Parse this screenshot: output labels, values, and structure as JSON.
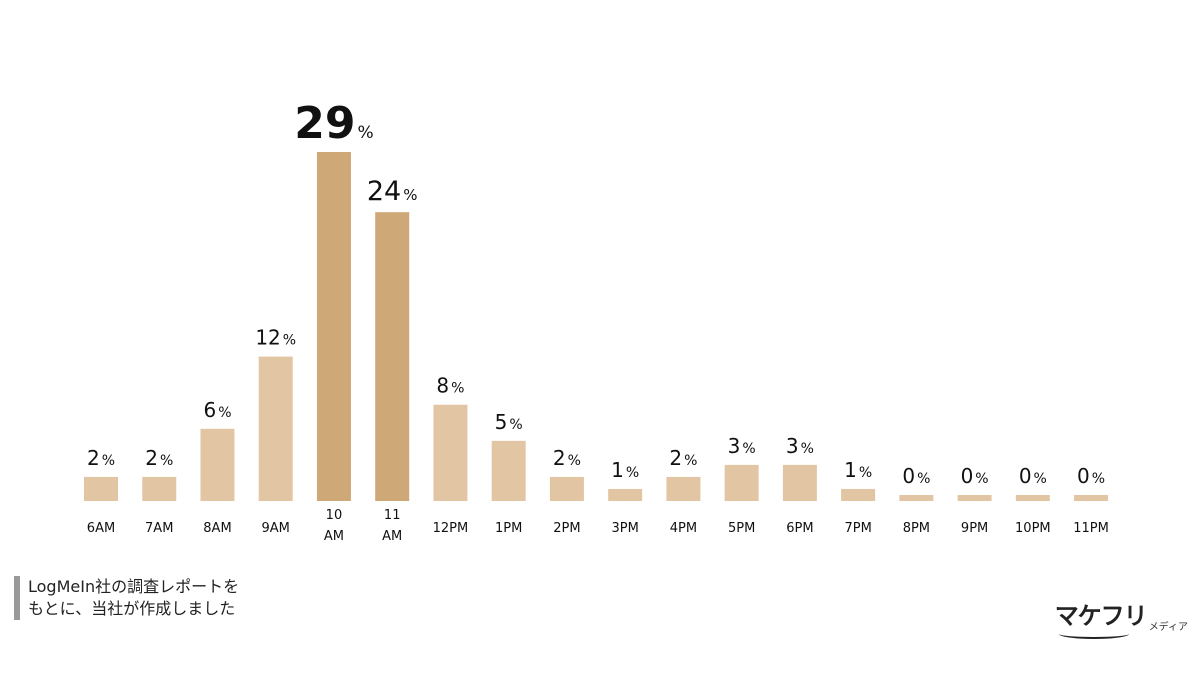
{
  "chart_data": {
    "type": "bar",
    "title": "",
    "xlabel": "",
    "ylabel": "",
    "ylim": [
      0,
      29
    ],
    "grid": false,
    "categories": [
      "6AM",
      "7AM",
      "8AM",
      "9AM",
      "10\nAM",
      "11\nAM",
      "12PM",
      "1PM",
      "2PM",
      "3PM",
      "4PM",
      "5PM",
      "6PM",
      "7PM",
      "8PM",
      "9PM",
      "10PM",
      "11PM"
    ],
    "values": [
      2,
      2,
      6,
      12,
      29,
      24,
      8,
      5,
      2,
      1,
      2,
      3,
      3,
      1,
      0,
      0,
      0,
      0
    ],
    "value_suffix": "%",
    "highlight_indices": [
      4,
      5
    ],
    "colors": {
      "bar": "#e2c6a4",
      "highlight": "#cfa878",
      "label": "#111111"
    }
  },
  "source_note": {
    "line1": "LogMeIn社の調査レポートを",
    "line2": "もとに、当社が作成しました"
  },
  "logo": {
    "main": "マケフリ",
    "sub": "メディア"
  }
}
